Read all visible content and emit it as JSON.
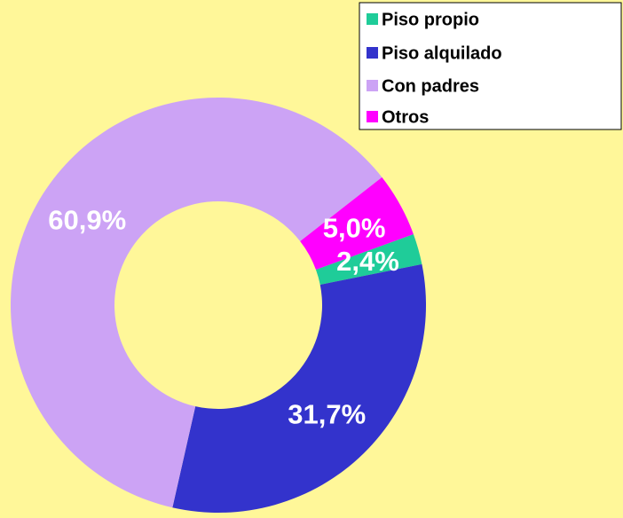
{
  "chart_data": {
    "type": "donut",
    "categories": [
      "Piso propio",
      "Piso alquilado",
      "Con padres",
      "Otros"
    ],
    "values": [
      2.4,
      31.7,
      60.9,
      5.0
    ],
    "value_labels": [
      "2,4%",
      "31,7%",
      "60,9%",
      "5,0%"
    ],
    "colors": [
      "#1fcc99",
      "#3333cc",
      "#cca3f5",
      "#ff00ff"
    ],
    "legend": "top-right"
  }
}
